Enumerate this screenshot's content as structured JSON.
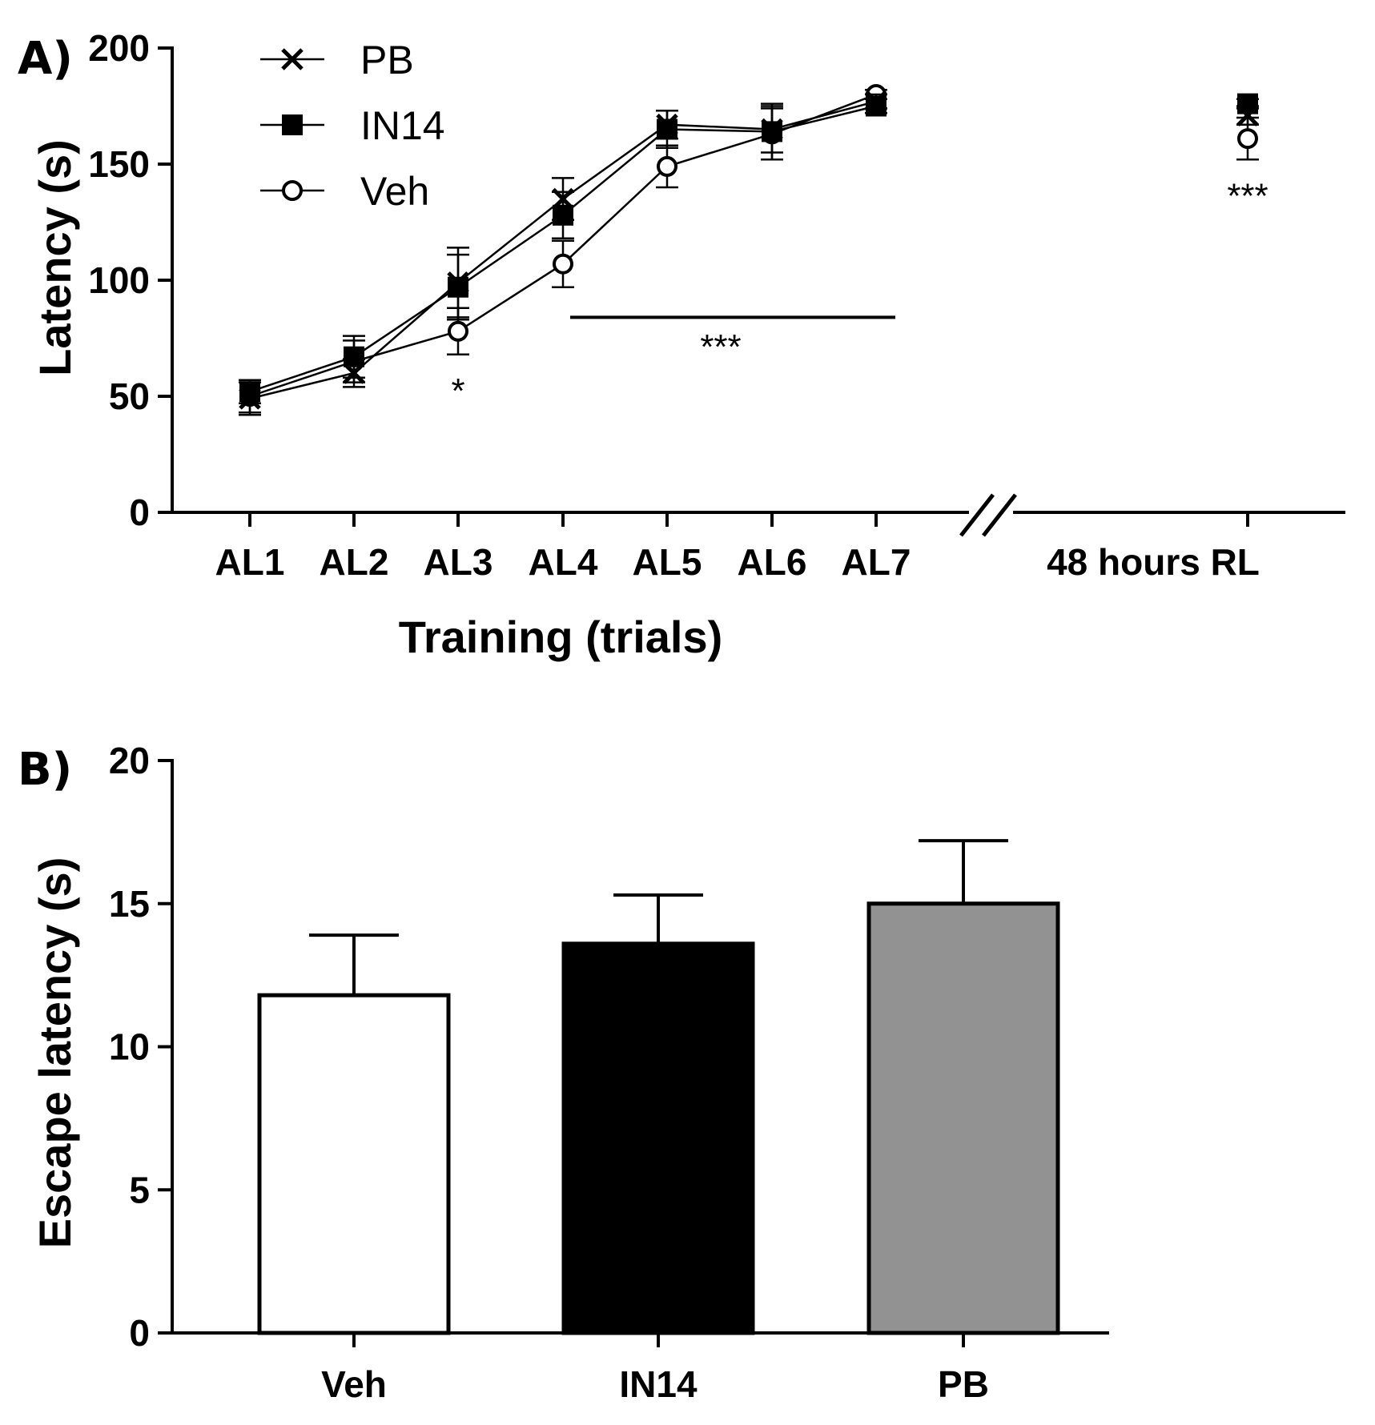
{
  "chart_data": [
    {
      "panel": "A)",
      "type": "line",
      "xlabel": "Training (trials)",
      "ylabel": "Latency (s)",
      "ylim": [
        0,
        200
      ],
      "yticks": [
        0,
        50,
        100,
        150,
        200
      ],
      "categories": [
        "AL1",
        "AL2",
        "AL3",
        "AL4",
        "AL5",
        "AL6",
        "AL7"
      ],
      "break_category": "48 hours RL",
      "series": [
        {
          "name": "PB",
          "marker": "x",
          "values": [
            49,
            60,
            99,
            135,
            167,
            165,
            177
          ],
          "errors": [
            7,
            6,
            15,
            9,
            6,
            10,
            3
          ],
          "break_value": 171,
          "break_error": 4
        },
        {
          "name": "IN14",
          "marker": "square",
          "values": [
            52,
            67,
            97,
            128,
            165,
            164,
            175
          ],
          "errors": [
            5,
            9,
            14,
            10,
            8,
            12,
            3
          ],
          "break_value": 176,
          "break_error": 2
        },
        {
          "name": "Veh",
          "marker": "circle",
          "values": [
            50,
            65,
            78,
            107,
            149,
            163,
            180
          ],
          "errors": [
            7,
            9,
            10,
            10,
            9,
            11,
            2
          ],
          "break_value": 161,
          "break_error": 9
        }
      ],
      "annotations": [
        {
          "text": "*",
          "category": "AL3",
          "y": 52
        },
        {
          "text": "***",
          "from": "AL4",
          "to": "AL7",
          "line_y": 84,
          "y": 71
        },
        {
          "text": "***",
          "category": "48 hours RL",
          "y": 136
        }
      ]
    },
    {
      "panel": "B)",
      "type": "bar",
      "xlabel": "",
      "ylabel": "Escape latency (s)",
      "ylim": [
        0,
        20
      ],
      "yticks": [
        0,
        5,
        10,
        15,
        20
      ],
      "categories": [
        "Veh",
        "IN14",
        "PB"
      ],
      "values": [
        11.8,
        13.6,
        15.0
      ],
      "errors": [
        2.1,
        1.7,
        2.2
      ],
      "colors": [
        "#ffffff",
        "#000000",
        "#929292"
      ]
    }
  ]
}
